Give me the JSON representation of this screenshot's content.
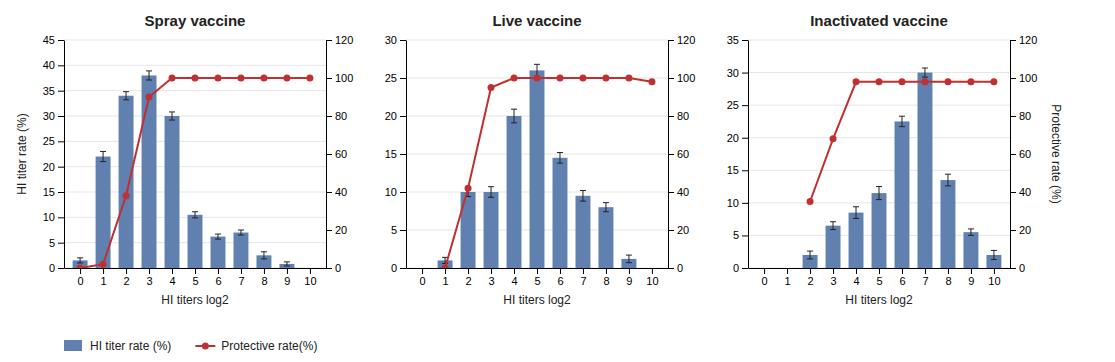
{
  "chart_data": [
    {
      "type": "bar",
      "title": "Spray vaccine",
      "x_label": "HI titers log2",
      "y_label": "HI titer rate (%)",
      "x": [
        0,
        1,
        2,
        3,
        4,
        5,
        6,
        7,
        8,
        9,
        10
      ],
      "series": [
        {
          "name": "HI titer rate (%)",
          "type": "bar",
          "color": "#6080b0",
          "values": [
            1.5,
            22,
            34,
            38,
            30,
            10.5,
            6.2,
            7,
            2.5,
            0.8,
            null
          ],
          "errors": [
            0.5,
            1.0,
            0.8,
            0.9,
            0.8,
            0.6,
            0.5,
            0.5,
            0.7,
            0.4,
            null
          ]
        },
        {
          "name": "Protective rate(%)",
          "type": "line",
          "axis": "y2",
          "color": "#c03030",
          "marker": "circle",
          "values": [
            0,
            2,
            38,
            90,
            100,
            100,
            100,
            100,
            100,
            100,
            100
          ]
        }
      ],
      "xlim": [
        -0.7,
        10.7
      ],
      "xticks": [
        0,
        1,
        2,
        3,
        4,
        5,
        6,
        7,
        8,
        9,
        10
      ],
      "ylim": [
        0,
        45
      ],
      "yticks": [
        0,
        5,
        10,
        15,
        20,
        25,
        30,
        35,
        40,
        45
      ],
      "y2lim": [
        0,
        120
      ],
      "y2ticks": [
        0,
        20,
        40,
        60,
        80,
        100,
        120
      ],
      "grid": true,
      "legend": "bottom"
    },
    {
      "type": "bar",
      "title": "Live vaccine",
      "x_label": "HI titers log2",
      "x": [
        0,
        1,
        2,
        3,
        4,
        5,
        6,
        7,
        8,
        9,
        10
      ],
      "series": [
        {
          "type": "bar",
          "color": "#6080b0",
          "values": [
            null,
            1.0,
            10,
            10,
            20,
            26,
            14.5,
            9.5,
            8,
            1.2,
            null
          ],
          "errors": [
            null,
            0.4,
            0.6,
            0.7,
            0.9,
            0.8,
            0.7,
            0.7,
            0.6,
            0.5,
            null
          ]
        },
        {
          "type": "line",
          "axis": "y2",
          "color": "#c03030",
          "marker": "circle",
          "values": [
            null,
            0,
            42,
            95,
            100,
            100,
            100,
            100,
            100,
            100,
            98
          ]
        }
      ],
      "xlim": [
        -0.7,
        10.7
      ],
      "xticks": [
        0,
        1,
        2,
        3,
        4,
        5,
        6,
        7,
        8,
        9,
        10
      ],
      "ylim": [
        0,
        30
      ],
      "yticks": [
        0,
        5,
        10,
        15,
        20,
        25,
        30
      ],
      "y2lim": [
        0,
        120
      ],
      "y2ticks": [
        0,
        20,
        40,
        60,
        80,
        100,
        120
      ],
      "grid": true
    },
    {
      "type": "bar",
      "title": "Inactivated vaccine",
      "x_label": "HI titers log2",
      "y2_label": "Protective rate  (%)",
      "x": [
        0,
        1,
        2,
        3,
        4,
        5,
        6,
        7,
        8,
        9,
        10
      ],
      "series": [
        {
          "type": "bar",
          "color": "#6080b0",
          "values": [
            null,
            null,
            2,
            6.5,
            8.5,
            11.5,
            22.5,
            30,
            13.5,
            5.5,
            2.0
          ],
          "errors": [
            null,
            null,
            0.6,
            0.6,
            0.9,
            1.0,
            0.8,
            0.7,
            0.9,
            0.5,
            0.7
          ]
        },
        {
          "type": "line",
          "axis": "y2",
          "color": "#c03030",
          "marker": "circle",
          "values": [
            null,
            null,
            35,
            68,
            98,
            98,
            98,
            98,
            98,
            98,
            98
          ]
        }
      ],
      "xlim": [
        -0.7,
        10.7
      ],
      "xticks": [
        0,
        1,
        2,
        3,
        4,
        5,
        6,
        7,
        8,
        9,
        10
      ],
      "ylim": [
        0,
        35
      ],
      "yticks": [
        0,
        5,
        10,
        15,
        20,
        25,
        30,
        35
      ],
      "y2lim": [
        0,
        120
      ],
      "y2ticks": [
        0,
        20,
        40,
        60,
        80,
        100,
        120
      ],
      "grid": true
    }
  ]
}
